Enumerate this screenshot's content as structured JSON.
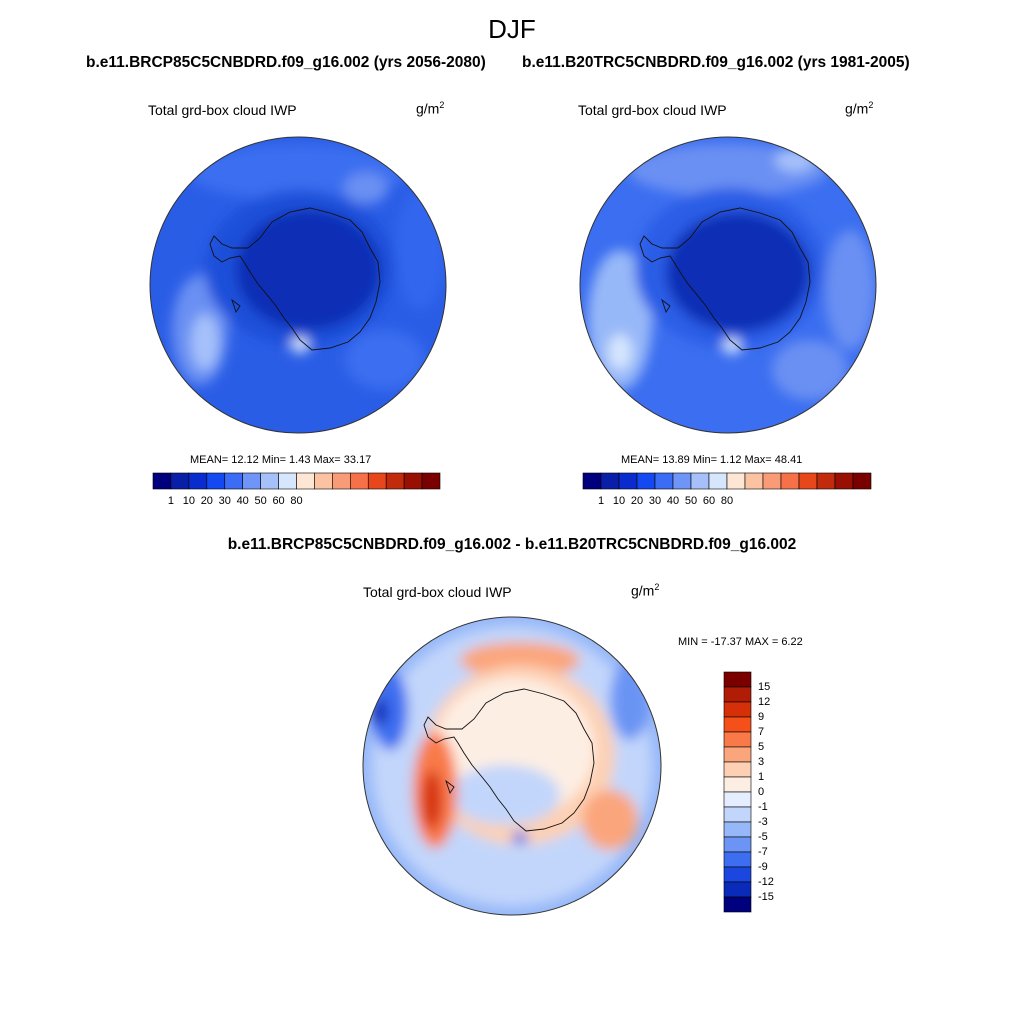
{
  "title": "DJF",
  "units_base": "g/m",
  "units_exp": "2",
  "variable": "Total grd-box cloud IWP",
  "panels": [
    {
      "case_title": "b.e11.BRCP85C5CNBDRD.f09_g16.002 (yrs 2056-2080)",
      "stats": "MEAN=  12.12  Min=   1.43  Max=  33.17"
    },
    {
      "case_title": "b.e11.B20TRC5CNBDRD.f09_g16.002 (yrs 1981-2005)",
      "stats": "MEAN=  13.89  Min=   1.12  Max=  48.41"
    }
  ],
  "abs_colorbar": {
    "labels": [
      "1",
      "10",
      "20",
      "30",
      "40",
      "50",
      "60",
      "80"
    ],
    "colors": [
      "#00007f",
      "#0a1fa8",
      "#0a2ccf",
      "#1448f0",
      "#3a6cf5",
      "#6e95f7",
      "#a6c1fa",
      "#d6e6fd",
      "#fde7d4",
      "#fcc3a3",
      "#fa9b78",
      "#f67148",
      "#e8461b",
      "#c22a0c",
      "#990f02",
      "#7a0000"
    ]
  },
  "diff": {
    "title": "b.e11.BRCP85C5CNBDRD.f09_g16.002 - b.e11.B20TRC5CNBDRD.f09_g16.002",
    "minmax": "MIN = -17.37 MAX =   6.22",
    "colorbar_labels": [
      "15",
      "12",
      "9",
      "7",
      "5",
      "3",
      "1",
      "0",
      "-1",
      "-3",
      "-5",
      "-7",
      "-9",
      "-12",
      "-15"
    ],
    "colors": [
      "#7a0000",
      "#b01c05",
      "#d63008",
      "#f5501a",
      "#f97a48",
      "#fba57c",
      "#fdd0b3",
      "#fdeee3",
      "#e4eefe",
      "#c2d6fb",
      "#97b8f8",
      "#6b94f4",
      "#3e6ef0",
      "#1b47e0",
      "#0a2ab9",
      "#00007f"
    ]
  }
}
